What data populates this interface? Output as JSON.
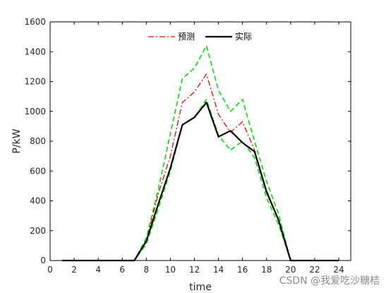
{
  "chart_data": {
    "type": "line",
    "xlabel": "time",
    "ylabel": "P/kW",
    "xlim": [
      0,
      25
    ],
    "ylim": [
      0,
      1600
    ],
    "xticks": [
      0,
      2,
      4,
      6,
      8,
      10,
      12,
      14,
      16,
      18,
      20,
      22,
      24
    ],
    "yticks": [
      0,
      200,
      400,
      600,
      800,
      1000,
      1200,
      1400,
      1600
    ],
    "legend_position": "top-center",
    "grid": false,
    "x": [
      1,
      2,
      3,
      4,
      5,
      6,
      7,
      8,
      9,
      10,
      11,
      12,
      13,
      14,
      15,
      16,
      17,
      18,
      19,
      20,
      21,
      22,
      23,
      24
    ],
    "series": [
      {
        "name": "预测",
        "color": "#ff0000",
        "style": "dash-dot",
        "values": [
          0,
          0,
          0,
          0,
          0,
          0,
          0,
          130,
          450,
          700,
          1060,
          1130,
          1250,
          980,
          860,
          930,
          740,
          470,
          270,
          0,
          0,
          0,
          0,
          0
        ]
      },
      {
        "name": "实际",
        "color": "#000000",
        "style": "solid",
        "values": [
          0,
          0,
          0,
          0,
          0,
          0,
          0,
          130,
          380,
          620,
          910,
          960,
          1060,
          830,
          870,
          790,
          730,
          460,
          270,
          0,
          0,
          0,
          0,
          0
        ]
      },
      {
        "name": "",
        "color": "#00e000",
        "style": "dashed",
        "values": [
          0,
          0,
          0,
          0,
          0,
          0,
          0,
          150,
          480,
          850,
          1220,
          1290,
          1440,
          1140,
          1000,
          1080,
          800,
          530,
          310,
          0,
          0,
          0,
          0,
          0
        ]
      },
      {
        "name": "",
        "color": "#00e000",
        "style": "dashed",
        "values": [
          0,
          0,
          0,
          0,
          0,
          0,
          0,
          110,
          350,
          600,
          910,
          960,
          1080,
          840,
          740,
          800,
          690,
          420,
          240,
          0,
          0,
          0,
          0,
          0
        ]
      }
    ]
  },
  "watermark": "CSDN @我爱吃沙糖桔"
}
